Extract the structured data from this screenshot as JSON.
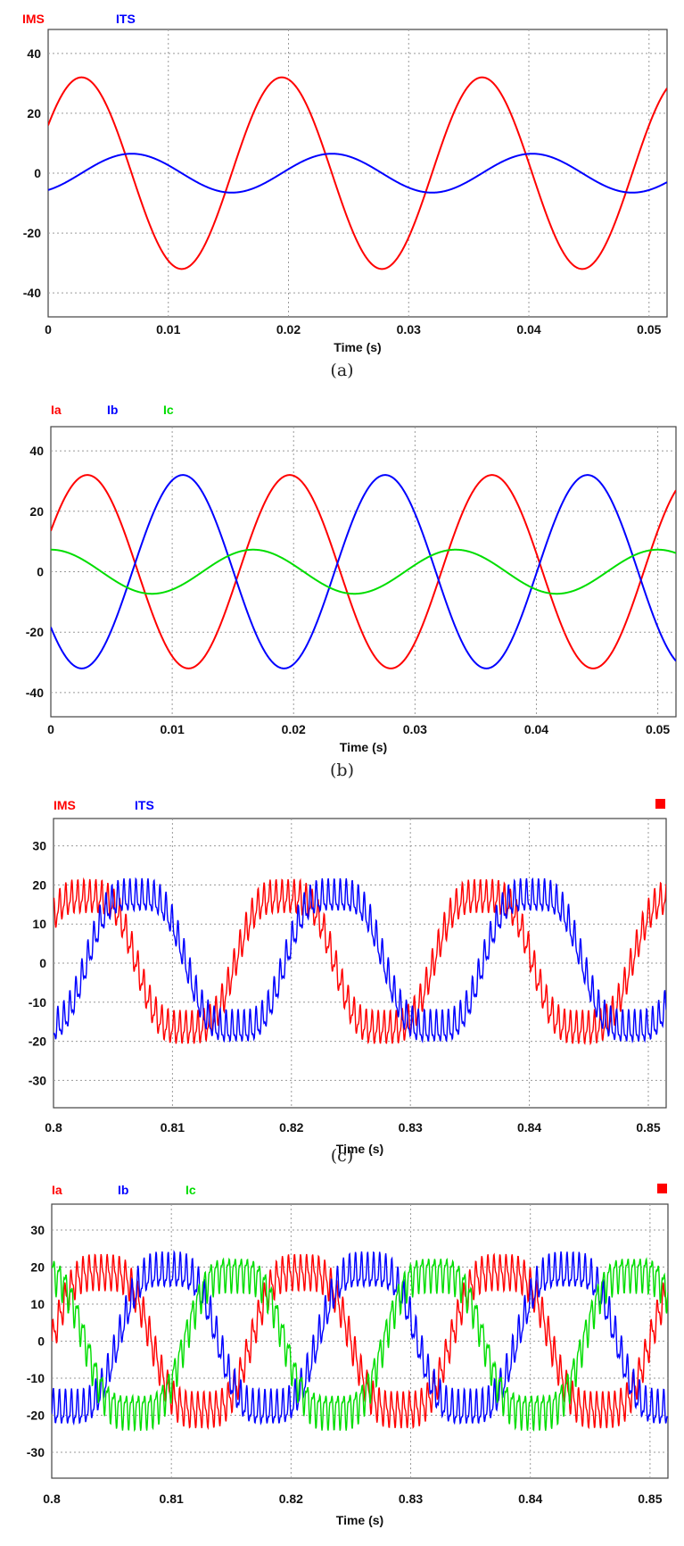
{
  "figure": {
    "captions": [
      "(a)",
      "(b)",
      "(c)"
    ]
  },
  "chart_data": [
    {
      "id": "a",
      "type": "line",
      "legend": [
        {
          "name": "IMS",
          "color": "#ff0000"
        },
        {
          "name": "ITS",
          "color": "#0000ff"
        }
      ],
      "xlabel": "Time (s)",
      "xlim": [
        0,
        0.0515
      ],
      "ylim": [
        -48,
        48
      ],
      "xticks": [
        0,
        0.01,
        0.02,
        0.03,
        0.04,
        0.05
      ],
      "xticklabels": [
        "0",
        "0.01",
        "0.02",
        "0.03",
        "0.04",
        "0.05"
      ],
      "yticks": [
        40,
        20,
        0,
        -20,
        -40
      ],
      "yticklabels": [
        "40",
        "20",
        "0",
        "-20",
        "-40"
      ],
      "grid": true,
      "series": [
        {
          "name": "IMS",
          "color": "#ff0000",
          "shape": "sine",
          "amplitude": 32,
          "frequency_hz": 60,
          "phase_deg": 30,
          "ripple": 0
        },
        {
          "name": "ITS",
          "color": "#0000ff",
          "shape": "sine",
          "amplitude": 6.5,
          "frequency_hz": 60,
          "phase_deg": -60,
          "ripple": 0
        }
      ]
    },
    {
      "id": "b",
      "type": "line",
      "legend": [
        {
          "name": "Ia",
          "color": "#ff0000"
        },
        {
          "name": "Ib",
          "color": "#0000ff"
        },
        {
          "name": "Ic",
          "color": "#00dd00"
        }
      ],
      "xlabel": "Time (s)",
      "xlim": [
        0,
        0.0515
      ],
      "ylim": [
        -48,
        48
      ],
      "xticks": [
        0,
        0.01,
        0.02,
        0.03,
        0.04,
        0.05
      ],
      "xticklabels": [
        "0",
        "0.01",
        "0.02",
        "0.03",
        "0.04",
        "0.05"
      ],
      "yticks": [
        40,
        20,
        0,
        -20,
        -40
      ],
      "yticklabels": [
        "40",
        "20",
        "0",
        "-20",
        "-40"
      ],
      "grid": true,
      "series": [
        {
          "name": "Ia",
          "color": "#ff0000",
          "shape": "sine",
          "amplitude": 32,
          "frequency_hz": 60,
          "phase_deg": 25,
          "ripple": 0
        },
        {
          "name": "Ib",
          "color": "#0000ff",
          "shape": "sine",
          "amplitude": 32,
          "frequency_hz": 60,
          "phase_deg": -145,
          "ripple": 0
        },
        {
          "name": "Ic",
          "color": "#00dd00",
          "shape": "sine",
          "amplitude": 7.3,
          "frequency_hz": 60,
          "phase_deg": 90,
          "ripple": 0
        }
      ]
    },
    {
      "id": "c",
      "type": "line",
      "legend": [
        {
          "name": "IMS",
          "color": "#ff0000"
        },
        {
          "name": "ITS",
          "color": "#0000ff"
        }
      ],
      "xlabel": "Time (s)",
      "xlim": [
        0.8,
        0.8515
      ],
      "ylim": [
        -37,
        37
      ],
      "xticks": [
        0.8,
        0.81,
        0.82,
        0.83,
        0.84,
        0.85
      ],
      "xticklabels": [
        "0.8",
        "0.81",
        "0.82",
        "0.83",
        "0.84",
        "0.85"
      ],
      "yticks": [
        30,
        20,
        10,
        0,
        -10,
        -20,
        -30
      ],
      "yticklabels": [
        "30",
        "20",
        "10",
        "0",
        "-10",
        "-20",
        "-30"
      ],
      "grid": true,
      "series": [
        {
          "name": "IMS",
          "color": "#ff0000",
          "shape": "stepped-sine",
          "amplitude": 19,
          "frequency_hz": 60,
          "phase_deg": 30,
          "ripple": 3.5
        },
        {
          "name": "ITS",
          "color": "#0000ff",
          "shape": "stepped-sine",
          "amplitude": 19,
          "frequency_hz": 60,
          "phase_deg": -60,
          "ripple": 3.5
        }
      ]
    },
    {
      "id": "d",
      "type": "line",
      "legend": [
        {
          "name": "Ia",
          "color": "#ff0000"
        },
        {
          "name": "Ib",
          "color": "#0000ff"
        },
        {
          "name": "Ic",
          "color": "#00dd00"
        }
      ],
      "xlabel": "Time (s)",
      "xlim": [
        0.8,
        0.8515
      ],
      "ylim": [
        -37,
        37
      ],
      "xticks": [
        0.8,
        0.81,
        0.82,
        0.83,
        0.84,
        0.85
      ],
      "xticklabels": [
        "0.8",
        "0.81",
        "0.82",
        "0.83",
        "0.84",
        "0.85"
      ],
      "yticks": [
        30,
        20,
        10,
        0,
        -10,
        -20,
        -30
      ],
      "yticklabels": [
        "30",
        "20",
        "10",
        "0",
        "-10",
        "-20",
        "-30"
      ],
      "grid": true,
      "series": [
        {
          "name": "Ia",
          "color": "#ff0000",
          "shape": "stepped-sine",
          "amplitude": 21,
          "frequency_hz": 60,
          "phase_deg": 0,
          "ripple": 4
        },
        {
          "name": "Ib",
          "color": "#0000ff",
          "shape": "stepped-sine",
          "amplitude": 21,
          "frequency_hz": 60,
          "phase_deg": -120,
          "ripple": 4
        },
        {
          "name": "Ic",
          "color": "#00dd00",
          "shape": "stepped-sine",
          "amplitude": 21,
          "frequency_hz": 60,
          "phase_deg": 120,
          "ripple": 4
        }
      ]
    }
  ]
}
